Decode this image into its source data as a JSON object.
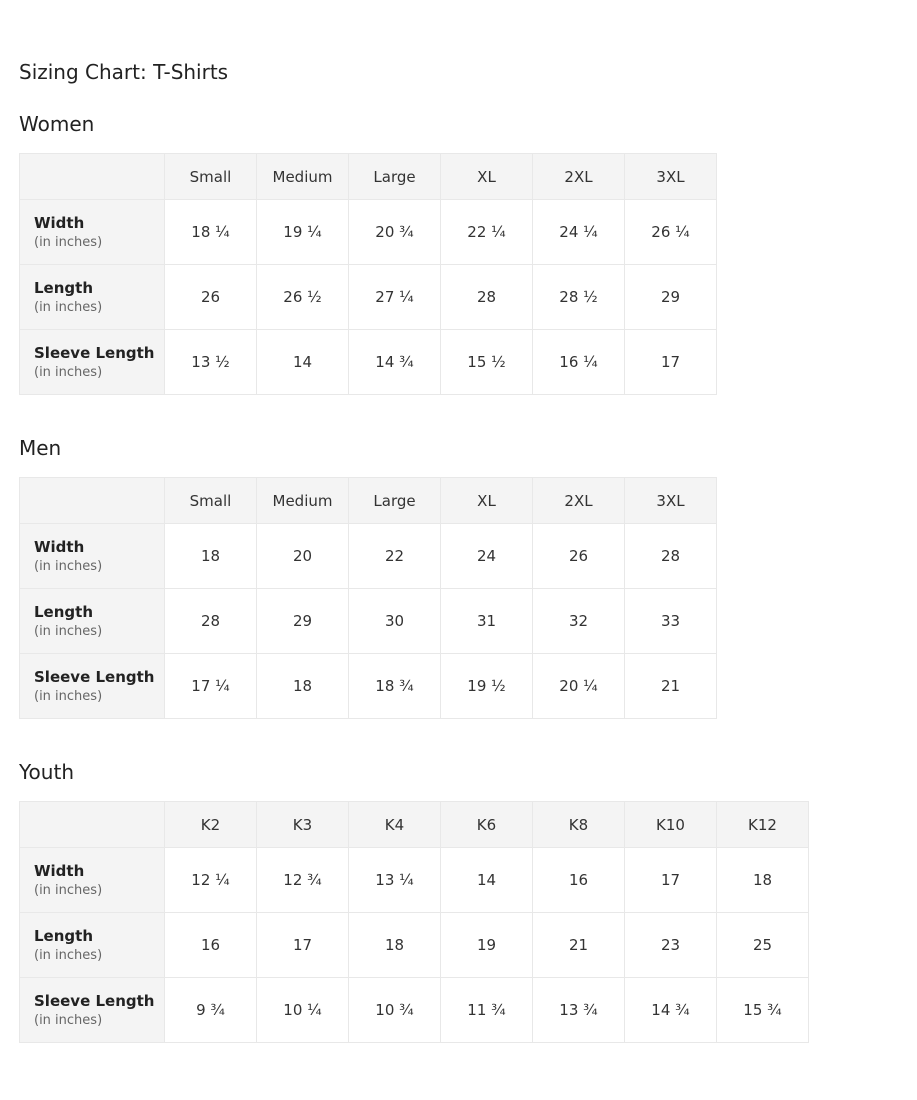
{
  "title": "Sizing Chart: T-Shirts",
  "unit_note": "(in inches)",
  "sections": [
    {
      "name": "Women",
      "sizes": [
        "Small",
        "Medium",
        "Large",
        "XL",
        "2XL",
        "3XL"
      ],
      "rows": [
        {
          "label": "Width",
          "values": [
            "18 ¼",
            "19 ¼",
            "20 ¾",
            "22 ¼",
            "24 ¼",
            "26 ¼"
          ]
        },
        {
          "label": "Length",
          "values": [
            "26",
            "26 ½",
            "27 ¼",
            "28",
            "28 ½",
            "29"
          ]
        },
        {
          "label": "Sleeve Length",
          "values": [
            "13 ½",
            "14",
            "14 ¾",
            "15 ½",
            "16 ¼",
            "17"
          ]
        }
      ]
    },
    {
      "name": "Men",
      "sizes": [
        "Small",
        "Medium",
        "Large",
        "XL",
        "2XL",
        "3XL"
      ],
      "rows": [
        {
          "label": "Width",
          "values": [
            "18",
            "20",
            "22",
            "24",
            "26",
            "28"
          ]
        },
        {
          "label": "Length",
          "values": [
            "28",
            "29",
            "30",
            "31",
            "32",
            "33"
          ]
        },
        {
          "label": "Sleeve Length",
          "values": [
            "17 ¼",
            "18",
            "18 ¾",
            "19 ½",
            "20 ¼",
            "21"
          ]
        }
      ]
    },
    {
      "name": "Youth",
      "sizes": [
        "K2",
        "K3",
        "K4",
        "K6",
        "K8",
        "K10",
        "K12"
      ],
      "rows": [
        {
          "label": "Width",
          "values": [
            "12 ¼",
            "12 ¾",
            "13 ¼",
            "14",
            "16",
            "17",
            "18"
          ]
        },
        {
          "label": "Length",
          "values": [
            "16",
            "17",
            "18",
            "19",
            "21",
            "23",
            "25"
          ]
        },
        {
          "label": "Sleeve Length",
          "values": [
            "9 ¾",
            "10 ¼",
            "10 ¾",
            "11 ¾",
            "13 ¾",
            "14 ¾",
            "15 ¾"
          ]
        }
      ]
    }
  ]
}
